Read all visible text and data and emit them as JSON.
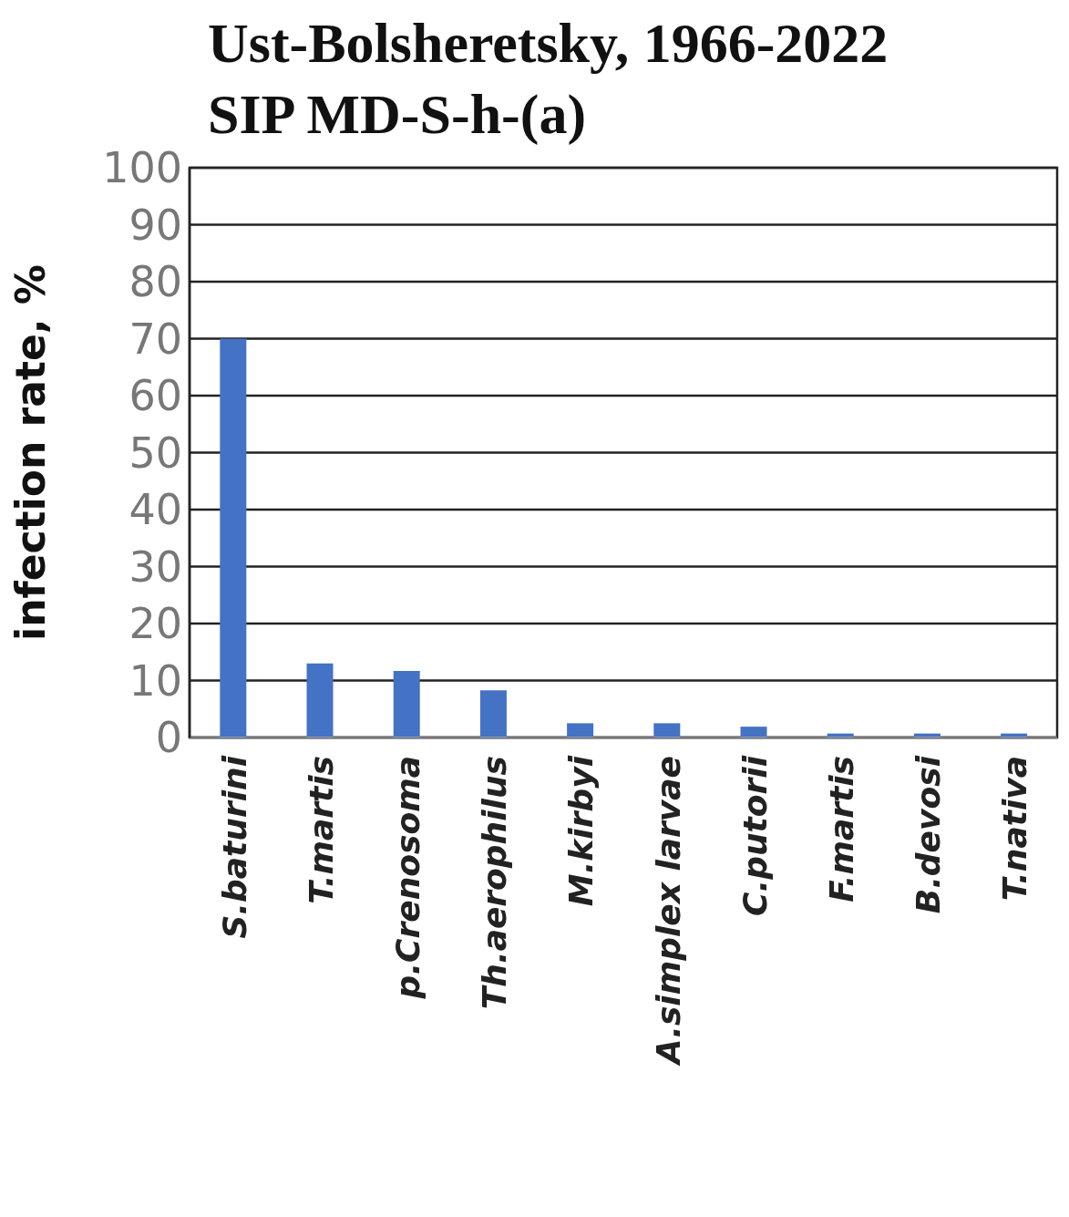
{
  "chart_data": {
    "type": "bar",
    "title": "Ust-Bolsheretsky, 1966-2022    SIP MD-S-h-(a)",
    "ylabel": "infection rate, %",
    "categories": [
      "S.baturini",
      "T.martis",
      "p.Crenosoma",
      "Th.aerophilus",
      "M.kirbyi",
      "A.simplex larvae",
      "C.putorii",
      "F.martis",
      "B.devosi",
      "T.nativa"
    ],
    "values": [
      70,
      13,
      11.7,
      8.3,
      2.5,
      2.5,
      1.9,
      0.7,
      0.7,
      0.7
    ],
    "color": "#4472c4",
    "ylim": [
      0,
      100
    ],
    "yticks": [
      0,
      10,
      20,
      30,
      40,
      50,
      60,
      70,
      80,
      90,
      100
    ],
    "grid": "y",
    "legend": false
  }
}
